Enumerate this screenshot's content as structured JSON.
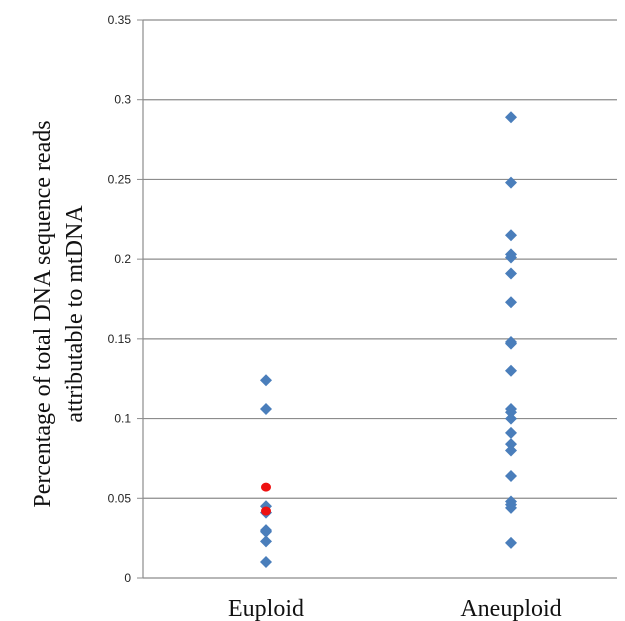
{
  "chart_data": {
    "type": "scatter",
    "categories": [
      "Euploid",
      "Aneuploid"
    ],
    "ylabel_lines": [
      "Percentage of total DNA sequence reads",
      "attributable to mtDNA"
    ],
    "ylim": [
      0,
      0.35
    ],
    "yticks": [
      "0",
      "0.05",
      "0.1",
      "0.15",
      "0.2",
      "0.25",
      "0.3",
      "0.35"
    ],
    "grid": true,
    "series": [
      {
        "marker": "diamond",
        "color": "#4a7ebb",
        "points": [
          {
            "x": "Euploid",
            "y": 0.124
          },
          {
            "x": "Euploid",
            "y": 0.106
          },
          {
            "x": "Euploid",
            "y": 0.045
          },
          {
            "x": "Euploid",
            "y": 0.041
          },
          {
            "x": "Euploid",
            "y": 0.03
          },
          {
            "x": "Euploid",
            "y": 0.029
          },
          {
            "x": "Euploid",
            "y": 0.023
          },
          {
            "x": "Euploid",
            "y": 0.01
          },
          {
            "x": "Aneuploid",
            "y": 0.289
          },
          {
            "x": "Aneuploid",
            "y": 0.248
          },
          {
            "x": "Aneuploid",
            "y": 0.215
          },
          {
            "x": "Aneuploid",
            "y": 0.203
          },
          {
            "x": "Aneuploid",
            "y": 0.201
          },
          {
            "x": "Aneuploid",
            "y": 0.191
          },
          {
            "x": "Aneuploid",
            "y": 0.173
          },
          {
            "x": "Aneuploid",
            "y": 0.148
          },
          {
            "x": "Aneuploid",
            "y": 0.147
          },
          {
            "x": "Aneuploid",
            "y": 0.13
          },
          {
            "x": "Aneuploid",
            "y": 0.106
          },
          {
            "x": "Aneuploid",
            "y": 0.104
          },
          {
            "x": "Aneuploid",
            "y": 0.1
          },
          {
            "x": "Aneuploid",
            "y": 0.091
          },
          {
            "x": "Aneuploid",
            "y": 0.084
          },
          {
            "x": "Aneuploid",
            "y": 0.08
          },
          {
            "x": "Aneuploid",
            "y": 0.064
          },
          {
            "x": "Aneuploid",
            "y": 0.048
          },
          {
            "x": "Aneuploid",
            "y": 0.046
          },
          {
            "x": "Aneuploid",
            "y": 0.044
          },
          {
            "x": "Aneuploid",
            "y": 0.022
          }
        ]
      },
      {
        "marker": "circle",
        "color": "#ee1111",
        "points": [
          {
            "x": "Euploid",
            "y": 0.057
          },
          {
            "x": "Euploid",
            "y": 0.042
          }
        ]
      }
    ]
  }
}
